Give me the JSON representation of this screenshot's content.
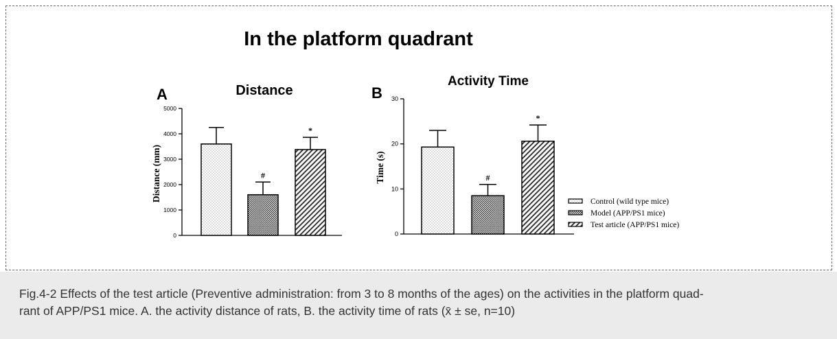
{
  "figure": {
    "title": "In the platform quadrant",
    "caption": {
      "line1": "Fig.4-2 Effects of the test article (Preventive administration: from 3 to 8 months of the ages) on the activities in the platform quad-",
      "line2": "rant of APP/PS1 mice. A. the activity distance of rats, B. the activity time of rats (x̄ ± se, n=10)"
    }
  },
  "colors": {
    "caption_background": "#ebebeb",
    "caption_text": "#333333",
    "frame_border": "#6a6a6a",
    "bar_outline": "#000000"
  },
  "chart_data": [
    {
      "panel": "A",
      "type": "bar",
      "title": "Distance",
      "ylabel": "Distance (mm)",
      "ylim": [
        0,
        5000
      ],
      "yticks": [
        0,
        1000,
        2000,
        3000,
        4000,
        5000
      ],
      "values": [
        3600,
        1600,
        3380
      ],
      "errors": [
        650,
        500,
        480
      ],
      "marks": [
        "",
        "#",
        "*"
      ],
      "patterns": [
        "dots",
        "dense",
        "diagonal"
      ],
      "grid": false
    },
    {
      "panel": "B",
      "type": "bar",
      "title": "Activity Time",
      "ylabel": "Time (s)",
      "ylim": [
        0,
        30
      ],
      "yticks": [
        0,
        10,
        20,
        30
      ],
      "values": [
        19.3,
        8.5,
        20.6
      ],
      "errors": [
        3.7,
        2.5,
        3.6
      ],
      "marks": [
        "",
        "#",
        "*"
      ],
      "patterns": [
        "dots",
        "dense",
        "diagonal"
      ],
      "grid": false,
      "legend": {
        "position": "right",
        "entries": [
          {
            "label": "Control (wild type mice)",
            "pattern": "dots"
          },
          {
            "label": "Model (APP/PS1 mice)",
            "pattern": "dense"
          },
          {
            "label": "Test article (APP/PS1 mice)",
            "pattern": "diagonal"
          }
        ]
      }
    }
  ]
}
